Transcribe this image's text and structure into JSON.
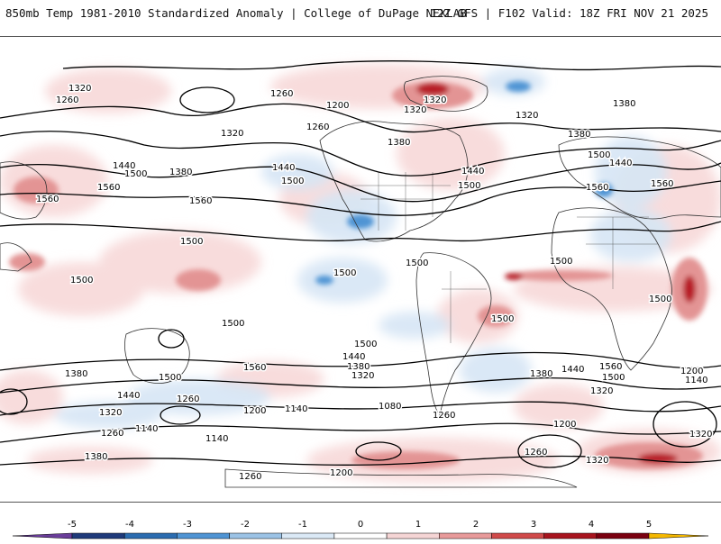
{
  "header": {
    "left_title": "850mb Temp 1981-2010 Standardized Anomaly | College of DuPage NEXLAB",
    "right_title": "12Z GFS | F102 Valid: 18Z FRI NOV 21 2025"
  },
  "legend": {
    "ticks": [
      "-5",
      "-4",
      "-3",
      "-2",
      "-1",
      "0",
      "1",
      "2",
      "3",
      "4",
      "5"
    ],
    "colors": [
      "#6a3d9a",
      "#1f3a7a",
      "#2b6cb0",
      "#4f94d4",
      "#9cc3e6",
      "#dbe9f6",
      "#ffffff",
      "#f5d5d5",
      "#e89a9a",
      "#d04a4a",
      "#a8141e",
      "#7a0010",
      "#f5b800"
    ]
  },
  "contour_labels": [
    {
      "text": "1320"
    },
    {
      "text": "1260"
    },
    {
      "text": "1260"
    },
    {
      "text": "1200"
    },
    {
      "text": "1320"
    },
    {
      "text": "1260"
    },
    {
      "text": "1320"
    },
    {
      "text": "1380"
    },
    {
      "text": "1320"
    },
    {
      "text": "1320"
    },
    {
      "text": "1380"
    },
    {
      "text": "1440"
    },
    {
      "text": "1500"
    },
    {
      "text": "1380"
    },
    {
      "text": "1440"
    },
    {
      "text": "1500"
    },
    {
      "text": "1560"
    },
    {
      "text": "1560"
    },
    {
      "text": "1560"
    },
    {
      "text": "1440"
    },
    {
      "text": "1500"
    },
    {
      "text": "1380"
    },
    {
      "text": "1500"
    },
    {
      "text": "1440"
    },
    {
      "text": "1560"
    },
    {
      "text": "1560"
    },
    {
      "text": "1500"
    },
    {
      "text": "1500"
    },
    {
      "text": "1500"
    },
    {
      "text": "1500"
    },
    {
      "text": "1500"
    },
    {
      "text": "1500"
    },
    {
      "text": "1500"
    },
    {
      "text": "1500"
    },
    {
      "text": "1500"
    },
    {
      "text": "1440"
    },
    {
      "text": "1380"
    },
    {
      "text": "1320"
    },
    {
      "text": "1560"
    },
    {
      "text": "1500"
    },
    {
      "text": "1380"
    },
    {
      "text": "1440"
    },
    {
      "text": "1560"
    },
    {
      "text": "1500"
    },
    {
      "text": "1320"
    },
    {
      "text": "1200"
    },
    {
      "text": "1140"
    },
    {
      "text": "1380"
    },
    {
      "text": "1440"
    },
    {
      "text": "1320"
    },
    {
      "text": "1260"
    },
    {
      "text": "1200"
    },
    {
      "text": "1140"
    },
    {
      "text": "1080"
    },
    {
      "text": "1260"
    },
    {
      "text": "1200"
    },
    {
      "text": "1260"
    },
    {
      "text": "1140"
    },
    {
      "text": "1380"
    },
    {
      "text": "1140"
    },
    {
      "text": "1260"
    },
    {
      "text": "1200"
    },
    {
      "text": "1260"
    },
    {
      "text": "1320"
    },
    {
      "text": "1320"
    }
  ]
}
